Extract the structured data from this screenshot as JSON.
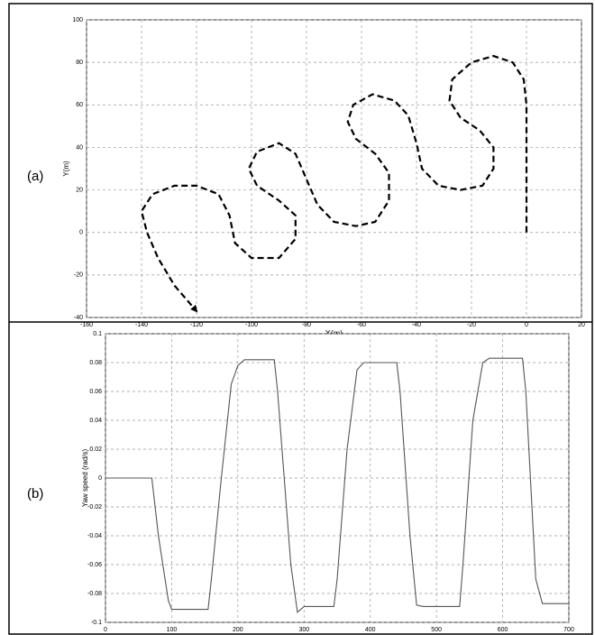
{
  "chart_data": [
    {
      "type": "line",
      "panel_label": "(a)",
      "x_label": "X(m)",
      "y_label": "Y(m)",
      "color": "#000000",
      "dashed": true,
      "grid": true,
      "end_arrow": true,
      "x": [
        0,
        0,
        0,
        0,
        -1,
        -5,
        -12,
        -20,
        -27,
        -28,
        -24,
        -17,
        -12,
        -12,
        -16,
        -24,
        -32,
        -38,
        -40,
        -43,
        -48,
        -56,
        -63,
        -65,
        -62,
        -55,
        -50,
        -50,
        -55,
        -62,
        -70,
        -76,
        -80,
        -84,
        -90,
        -98,
        -101,
        -98,
        -90,
        -84,
        -84,
        -90,
        -100,
        -106,
        -108,
        -112,
        -120,
        -128,
        -136,
        -140,
        -138,
        -134,
        -128,
        -120
      ],
      "values": [
        0,
        20,
        40,
        60,
        72,
        80,
        83,
        80,
        72,
        62,
        54,
        48,
        40,
        30,
        22,
        20,
        22,
        30,
        42,
        55,
        62,
        65,
        60,
        52,
        44,
        37,
        28,
        15,
        5,
        3,
        5,
        13,
        25,
        37,
        42,
        38,
        30,
        22,
        15,
        8,
        -3,
        -12,
        -12,
        -5,
        8,
        18,
        22,
        22,
        18,
        10,
        0,
        -12,
        -25,
        -37
      ],
      "xlim": [
        -160,
        20
      ],
      "xticks": [
        -160,
        -140,
        -120,
        -100,
        -80,
        -60,
        -40,
        -20,
        0,
        20
      ],
      "ylim": [
        -40,
        100
      ],
      "yticks": [
        -40,
        -20,
        0,
        20,
        40,
        60,
        80,
        100
      ]
    },
    {
      "type": "line",
      "panel_label": "(b)",
      "x_label": "Time (s)",
      "y_label": "Yaw speed (rad/s)",
      "color": "#555555",
      "dashed": false,
      "grid": true,
      "end_arrow": false,
      "x": [
        0,
        70,
        80,
        95,
        100,
        155,
        160,
        175,
        190,
        200,
        210,
        255,
        260,
        280,
        290,
        300,
        345,
        350,
        365,
        380,
        390,
        440,
        445,
        460,
        470,
        480,
        535,
        540,
        555,
        570,
        580,
        630,
        635,
        650,
        660,
        700
      ],
      "values": [
        0,
        0,
        -0.04,
        -0.085,
        -0.091,
        -0.091,
        -0.07,
        0,
        0.065,
        0.078,
        0.082,
        0.082,
        0.06,
        -0.06,
        -0.093,
        -0.089,
        -0.089,
        -0.07,
        0.02,
        0.075,
        0.08,
        0.08,
        0.06,
        -0.04,
        -0.088,
        -0.089,
        -0.089,
        -0.06,
        0.04,
        0.08,
        0.083,
        0.083,
        0.06,
        -0.07,
        -0.087,
        -0.087
      ],
      "xlim": [
        0,
        700
      ],
      "xticks": [
        0,
        100,
        200,
        300,
        400,
        500,
        600,
        700
      ],
      "ylim": [
        -0.1,
        0.1
      ],
      "yticks": [
        -0.1,
        -0.08,
        -0.06,
        -0.04,
        -0.02,
        0,
        0.02,
        0.04,
        0.06,
        0.08,
        0.1
      ]
    }
  ]
}
